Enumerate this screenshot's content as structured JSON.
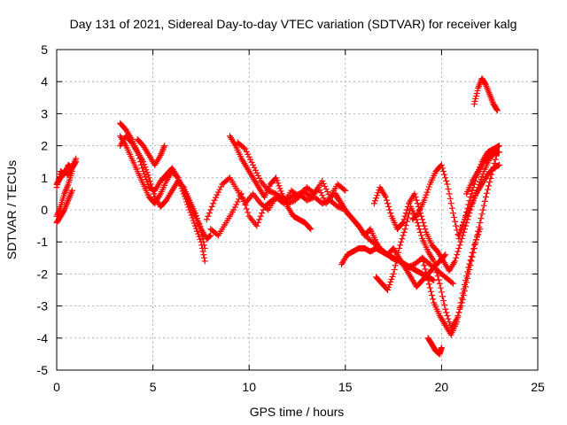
{
  "chart_data": {
    "type": "scatter",
    "title": "Day 131 of 2021, Sidereal Day-to-day VTEC variation (SDTVAR) for receiver kalg",
    "xlabel": "GPS time / hours",
    "ylabel": "SDTVAR / TECUs",
    "xlim": [
      0,
      25
    ],
    "ylim": [
      -5,
      5
    ],
    "x_ticks": [
      "0",
      "5",
      "10",
      "15",
      "20",
      "25"
    ],
    "y_ticks": [
      "-5",
      "-4",
      "-3",
      "-2",
      "-1",
      "0",
      "1",
      "2",
      "3",
      "4",
      "5"
    ],
    "grid": true,
    "marker": "+",
    "color": "#ff0000",
    "series": [
      {
        "x": [
          0.0,
          0.2,
          0.4,
          0.6,
          0.8,
          1.0
        ],
        "y": [
          0.8,
          1.0,
          1.2,
          1.1,
          1.3,
          1.5
        ]
      },
      {
        "x": [
          0.0,
          0.2,
          0.4,
          0.6,
          0.8,
          1.0
        ],
        "y": [
          0.7,
          1.2,
          1.1,
          1.4,
          1.3,
          1.6
        ]
      },
      {
        "x": [
          0.0,
          0.2,
          0.4,
          0.6,
          0.8
        ],
        "y": [
          -0.4,
          -0.2,
          0.0,
          0.3,
          0.6
        ]
      },
      {
        "x": [
          0.0,
          0.2,
          0.4,
          0.6,
          0.8
        ],
        "y": [
          -0.2,
          0.1,
          0.5,
          0.8,
          1.2
        ]
      },
      {
        "x": [
          3.3,
          3.6,
          3.9,
          4.2,
          4.5,
          4.8,
          5.1,
          5.4,
          5.7,
          6.0,
          6.3,
          6.6,
          6.9,
          7.2,
          7.5,
          7.8,
          8.0
        ],
        "y": [
          2.7,
          2.5,
          2.2,
          1.8,
          1.2,
          0.7,
          0.6,
          0.9,
          1.1,
          1.3,
          1.0,
          0.6,
          0.2,
          -0.2,
          -0.6,
          -0.9,
          -0.8
        ]
      },
      {
        "x": [
          3.3,
          3.6,
          3.9,
          4.2,
          4.5,
          4.8,
          5.1,
          5.4,
          5.7,
          6.0,
          6.3,
          6.6,
          6.9,
          7.2,
          7.5,
          7.7
        ],
        "y": [
          2.0,
          2.3,
          2.1,
          1.8,
          1.5,
          1.0,
          0.4,
          0.1,
          0.3,
          0.6,
          0.9,
          0.7,
          0.3,
          -0.1,
          -0.6,
          -1.2
        ]
      },
      {
        "x": [
          3.3,
          3.6,
          3.9,
          4.2,
          4.5,
          4.8,
          5.1,
          5.4,
          5.7,
          6.0,
          6.3,
          6.6,
          6.9,
          7.2,
          7.5,
          7.7
        ],
        "y": [
          2.3,
          2.0,
          1.6,
          1.2,
          0.8,
          0.4,
          0.2,
          0.5,
          0.9,
          1.2,
          1.0,
          0.5,
          0.0,
          -0.5,
          -1.0,
          -1.6
        ]
      },
      {
        "x": [
          4.2,
          4.5,
          4.8,
          5.1,
          5.4,
          5.6
        ],
        "y": [
          2.2,
          2.0,
          1.7,
          1.4,
          1.7,
          2.0
        ]
      },
      {
        "x": [
          7.8,
          8.2,
          8.6,
          9.0,
          9.4,
          9.8,
          10.2,
          10.6,
          11.0,
          11.4,
          11.8,
          12.2,
          12.6,
          13.0,
          13.4,
          13.8,
          14.2,
          14.6,
          15.0
        ],
        "y": [
          -0.3,
          0.3,
          0.8,
          1.0,
          0.6,
          0.2,
          0.5,
          0.2,
          0.0,
          0.4,
          0.2,
          0.6,
          0.4,
          0.7,
          0.5,
          0.9,
          0.4,
          0.8,
          0.6
        ]
      },
      {
        "x": [
          8.0,
          8.4,
          8.8,
          9.2,
          9.6,
          10.0,
          10.4,
          10.8,
          11.2,
          11.6,
          12.0,
          12.4,
          12.8,
          13.2,
          13.6,
          14.0,
          14.4,
          14.8
        ],
        "y": [
          -0.6,
          -0.8,
          -0.4,
          0.0,
          0.5,
          -0.2,
          -0.5,
          0.1,
          0.3,
          0.4,
          0.2,
          0.3,
          0.6,
          0.4,
          0.7,
          0.2,
          0.5,
          0.2
        ]
      },
      {
        "x": [
          9.0,
          9.3,
          9.6,
          9.9,
          10.2,
          10.5,
          10.8,
          11.1,
          11.4,
          11.7,
          12.0,
          12.3,
          12.6,
          12.9,
          13.2
        ],
        "y": [
          2.3,
          2.0,
          1.6,
          1.3,
          1.0,
          0.7,
          0.4,
          0.8,
          1.0,
          0.5,
          0.1,
          -0.2,
          -0.3,
          -0.4,
          -0.6
        ]
      },
      {
        "x": [
          9.4,
          9.8,
          10.2,
          10.6,
          11.0,
          11.4,
          11.8,
          12.2,
          12.6,
          13.0,
          13.4,
          13.8,
          14.2,
          14.6,
          15.0,
          15.4,
          15.8,
          16.2,
          16.6,
          17.0,
          17.4,
          17.8,
          18.2,
          18.6,
          19.0,
          19.4,
          19.8,
          20.2,
          20.6
        ],
        "y": [
          2.1,
          1.9,
          1.4,
          0.9,
          0.6,
          0.5,
          0.3,
          0.4,
          0.5,
          0.3,
          0.4,
          0.2,
          0.3,
          0.1,
          0.0,
          -0.3,
          -0.6,
          -0.9,
          -1.1,
          -1.3,
          -1.5,
          -1.6,
          -1.8,
          -1.7,
          -1.5,
          -1.7,
          -1.9,
          -2.1,
          -2.3
        ]
      },
      {
        "x": [
          14.5,
          14.8,
          15.1,
          15.4,
          15.7,
          16.0,
          16.3,
          16.6,
          16.9,
          17.2,
          17.5,
          17.8,
          18.1,
          18.4,
          18.7,
          19.0,
          19.3,
          19.6,
          19.9,
          20.2
        ],
        "y": [
          0.5,
          0.2,
          -0.1,
          -0.3,
          -0.5,
          -0.8,
          -0.6,
          -1.0,
          -1.3,
          -1.4,
          -1.2,
          -1.5,
          -1.8,
          -2.1,
          -2.4,
          -2.2,
          -2.0,
          -1.8,
          -1.6,
          -1.4
        ]
      },
      {
        "x": [
          14.8,
          15.1,
          15.4,
          15.7,
          16.0,
          16.3,
          16.6,
          16.9,
          17.2,
          17.5,
          17.8,
          18.1,
          18.4,
          18.7,
          19.0,
          19.3,
          19.6
        ],
        "y": [
          -1.7,
          -1.4,
          -1.3,
          -1.2,
          -1.2,
          -1.3,
          -1.2,
          -1.3,
          -1.4,
          -1.5,
          -1.6,
          -1.7,
          -1.8,
          -1.9,
          -2.0,
          -2.1,
          -2.2
        ]
      },
      {
        "x": [
          16.5,
          16.8,
          17.1,
          17.4,
          17.7,
          18.0,
          18.3,
          18.6,
          18.9,
          19.2,
          19.5,
          19.8,
          20.1,
          20.4,
          20.7,
          21.0,
          21.3,
          21.6,
          21.9,
          22.2,
          22.5,
          22.8
        ],
        "y": [
          0.2,
          0.7,
          0.4,
          -0.2,
          -0.6,
          -0.4,
          0.2,
          0.5,
          -0.1,
          -0.7,
          -1.1,
          -1.3,
          -1.6,
          -1.9,
          -1.6,
          -1.0,
          -0.4,
          0.2,
          0.7,
          1.2,
          1.6,
          1.8
        ]
      },
      {
        "x": [
          16.6,
          16.9,
          17.2,
          17.5,
          17.8,
          18.1,
          18.4,
          18.7,
          19.0,
          19.3,
          19.6,
          19.9,
          20.2,
          20.5,
          20.8,
          21.1,
          21.4,
          21.7,
          22.0,
          22.3,
          22.6,
          22.9
        ],
        "y": [
          -2.1,
          -2.3,
          -2.5,
          -2.0,
          -1.2,
          -0.6,
          0.1,
          -0.3,
          -0.9,
          -1.3,
          -1.6,
          -2.3,
          -3.1,
          -3.7,
          -3.4,
          -2.8,
          -2.0,
          -1.2,
          -0.4,
          0.4,
          1.1,
          1.8
        ]
      },
      {
        "x": [
          18.5,
          18.8,
          19.1,
          19.4,
          19.7,
          20.0,
          20.3,
          20.6,
          20.9,
          21.2,
          21.5,
          21.8,
          22.1,
          22.4,
          22.7,
          23.0
        ],
        "y": [
          -0.3,
          -0.1,
          0.3,
          0.8,
          1.2,
          1.4,
          0.8,
          -0.1,
          -0.9,
          -0.3,
          0.4,
          1.0,
          1.5,
          1.8,
          1.9,
          2.0
        ]
      },
      {
        "x": [
          19.0,
          19.3,
          19.6,
          19.9,
          20.2,
          20.5,
          20.8,
          21.1,
          21.4,
          21.7,
          22.0
        ],
        "y": [
          -1.5,
          -2.2,
          -2.9,
          -3.3,
          -3.6,
          -3.9,
          -3.5,
          -2.6,
          -1.8,
          -1.1,
          -0.6
        ]
      },
      {
        "x": [
          19.3,
          19.5,
          19.7,
          19.9,
          20.0
        ],
        "y": [
          -4.0,
          -4.2,
          -4.4,
          -4.5,
          -4.3
        ]
      },
      {
        "x": [
          21.3,
          21.6,
          21.9,
          22.2,
          22.5,
          22.8,
          23.0
        ],
        "y": [
          0.5,
          0.9,
          1.2,
          1.5,
          1.7,
          1.8,
          1.8
        ]
      },
      {
        "x": [
          20.9,
          21.2,
          21.5,
          21.8,
          22.1,
          22.4,
          22.7,
          23.0
        ],
        "y": [
          -0.8,
          -0.3,
          0.1,
          0.5,
          0.8,
          1.1,
          1.3,
          1.4
        ]
      },
      {
        "x": [
          21.7,
          21.9,
          22.1,
          22.3,
          22.5,
          22.7,
          22.9
        ],
        "y": [
          3.3,
          3.8,
          4.1,
          3.9,
          3.6,
          3.3,
          3.1
        ]
      }
    ]
  }
}
